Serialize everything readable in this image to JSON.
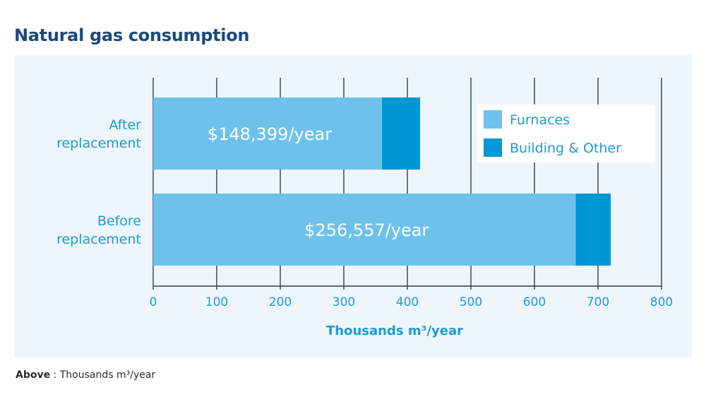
{
  "title": "Natural gas consumption",
  "footnote": {
    "label": "Above",
    "separator": " : ",
    "text": "Thousands m³/year"
  },
  "colors": {
    "title": "#1b4a7a",
    "panel": "#eef6fc",
    "furnaces": "#6ec1ea",
    "building_other": "#0097d7",
    "label_text": "#1f9ad6",
    "grid": "#2c3e50",
    "tick_text": "#1f9ad6",
    "cost_text": "#ffffff"
  },
  "chart_data": {
    "type": "bar",
    "orientation": "horizontal",
    "stacked": true,
    "categories": [
      [
        "After",
        "replacement"
      ],
      [
        "Before",
        "replacement"
      ]
    ],
    "series": [
      {
        "name": "Furnaces",
        "values": [
          360,
          665
        ]
      },
      {
        "name": "Building & Other",
        "values": [
          60,
          55
        ]
      }
    ],
    "bar_labels": [
      "$148,399/year",
      "$256,557/year"
    ],
    "xlabel": "Thousands m³/year",
    "xlim": [
      0,
      800
    ],
    "xticks": [
      0,
      100,
      200,
      300,
      400,
      500,
      600,
      700,
      800
    ],
    "grid": true,
    "legend": "top-right"
  }
}
